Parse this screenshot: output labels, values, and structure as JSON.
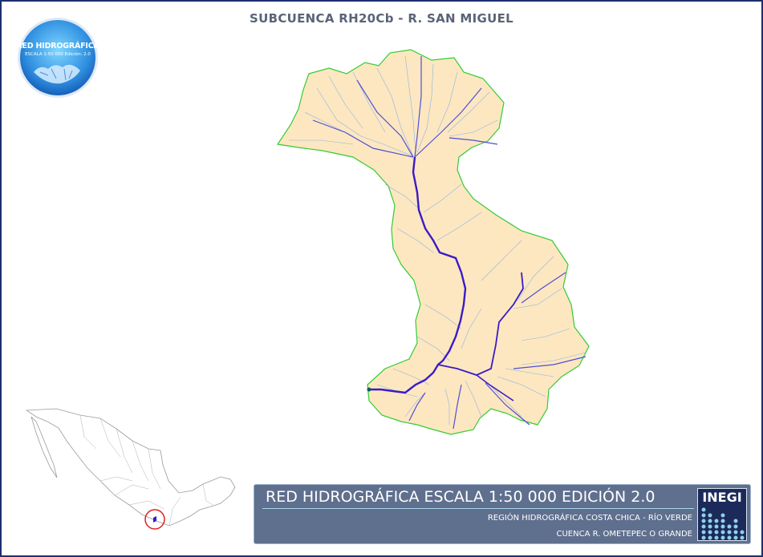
{
  "map": {
    "title": "SUBCUENCA RH20Cb - R. SAN MIGUEL",
    "colors": {
      "frame": "#1c2f6e",
      "basin_fill": "#fde7c0",
      "basin_outline": "#33cc33",
      "main_river": "#3a1bc9",
      "streams": "#6f9fe0",
      "locator_highlight": "#e02020",
      "banner": "#5f6f8e"
    }
  },
  "logo": {
    "line1": "RED HIDROGRÁFICA",
    "line2": "ESCALA 1:50 000  Edición: 2.0"
  },
  "locator_map": {
    "description_icon": "mexico-outline-icon",
    "highlight_icon": "red-circle-icon"
  },
  "banner": {
    "title": "RED HIDROGRÁFICA ESCALA 1:50 000 EDICIÓN 2.0",
    "line1": "REGIÓN HIDROGRÁFICA COSTA CHICA - RÍO VERDE",
    "line2": "CUENCA R. OMETEPEC O GRANDE",
    "org": "INEGI"
  }
}
